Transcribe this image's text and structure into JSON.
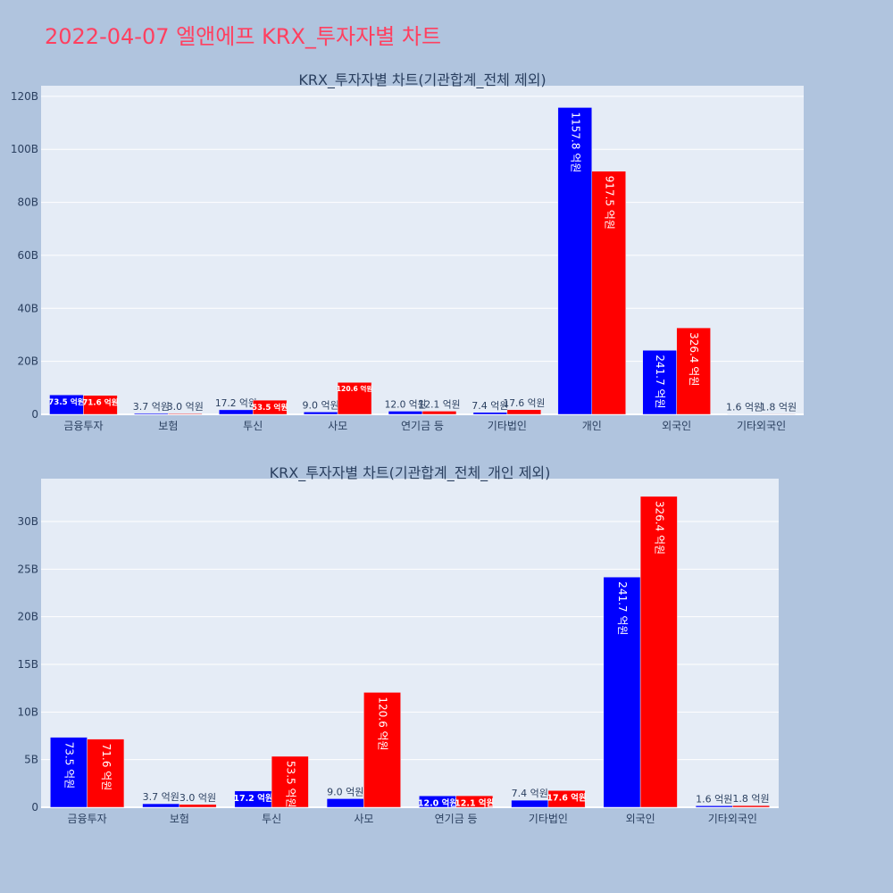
{
  "page": {
    "title": "2022-04-07 엘앤에프 KRX_투자자별 차트"
  },
  "colors": {
    "background": "#b0c4de",
    "plot_background": "#e5ecf6",
    "title_color": "#ff4060",
    "text_color": "#2a3f5f",
    "series1": "#0000ff",
    "series2": "#ff0000"
  },
  "chart_data": [
    {
      "type": "bar",
      "title": "KRX_투자자별 차트(기관합계_전체 제외)",
      "categories": [
        "금융투자",
        "보험",
        "투신",
        "사모",
        "연기금 등",
        "기타법인",
        "개인",
        "외국인",
        "기타외국인"
      ],
      "series": [
        {
          "values": [
            7350000000,
            370000000,
            1720000000,
            900000000,
            1200000000,
            740000000,
            115780000000,
            24170000000,
            160000000
          ],
          "labels": [
            "73.5 억원",
            "3.7 억원",
            "17.2 억원",
            "9.0 억원",
            "12.0 억원",
            "7.4 억원",
            "1157.8 억원",
            "241.7 억원",
            "1.6 억원"
          ]
        },
        {
          "values": [
            7160000000,
            300000000,
            5350000000,
            12060000000,
            1210000000,
            1760000000,
            91750000000,
            32640000000,
            180000000
          ],
          "labels": [
            "71.6 억원",
            "3.0 억원",
            "53.5 억원",
            "120.6 억원",
            "12.1 억원",
            "17.6 억원",
            "917.5 억원",
            "326.4 억원",
            "1.8 억원"
          ]
        }
      ],
      "ylim": [
        0,
        124000000000
      ],
      "yticks": [
        0,
        20000000000,
        40000000000,
        60000000000,
        80000000000,
        100000000000,
        120000000000
      ],
      "ytick_labels": [
        "0",
        "20B",
        "40B",
        "60B",
        "80B",
        "100B",
        "120B"
      ],
      "grid": true
    },
    {
      "type": "bar",
      "title": "KRX_투자자별 차트(기관합계_전체_개인 제외)",
      "categories": [
        "금융투자",
        "보험",
        "투신",
        "사모",
        "연기금 등",
        "기타법인",
        "외국인",
        "기타외국인"
      ],
      "series": [
        {
          "values": [
            7350000000,
            370000000,
            1720000000,
            900000000,
            1200000000,
            740000000,
            24170000000,
            160000000
          ],
          "labels": [
            "73.5 억원",
            "3.7 억원",
            "17.2 억원",
            "9.0 억원",
            "12.0 억원",
            "7.4 억원",
            "241.7 억원",
            "1.6 억원"
          ]
        },
        {
          "values": [
            7160000000,
            300000000,
            5350000000,
            12060000000,
            1210000000,
            1760000000,
            32640000000,
            180000000
          ],
          "labels": [
            "71.6 억원",
            "3.0 억원",
            "53.5 억원",
            "120.6 억원",
            "12.1 억원",
            "17.6 억원",
            "326.4 억원",
            "1.8 억원"
          ]
        }
      ],
      "ylim": [
        0,
        34500000000
      ],
      "yticks": [
        0,
        5000000000,
        10000000000,
        15000000000,
        20000000000,
        25000000000,
        30000000000
      ],
      "ytick_labels": [
        "0",
        "5B",
        "10B",
        "15B",
        "20B",
        "25B",
        "30B"
      ],
      "grid": true
    }
  ]
}
